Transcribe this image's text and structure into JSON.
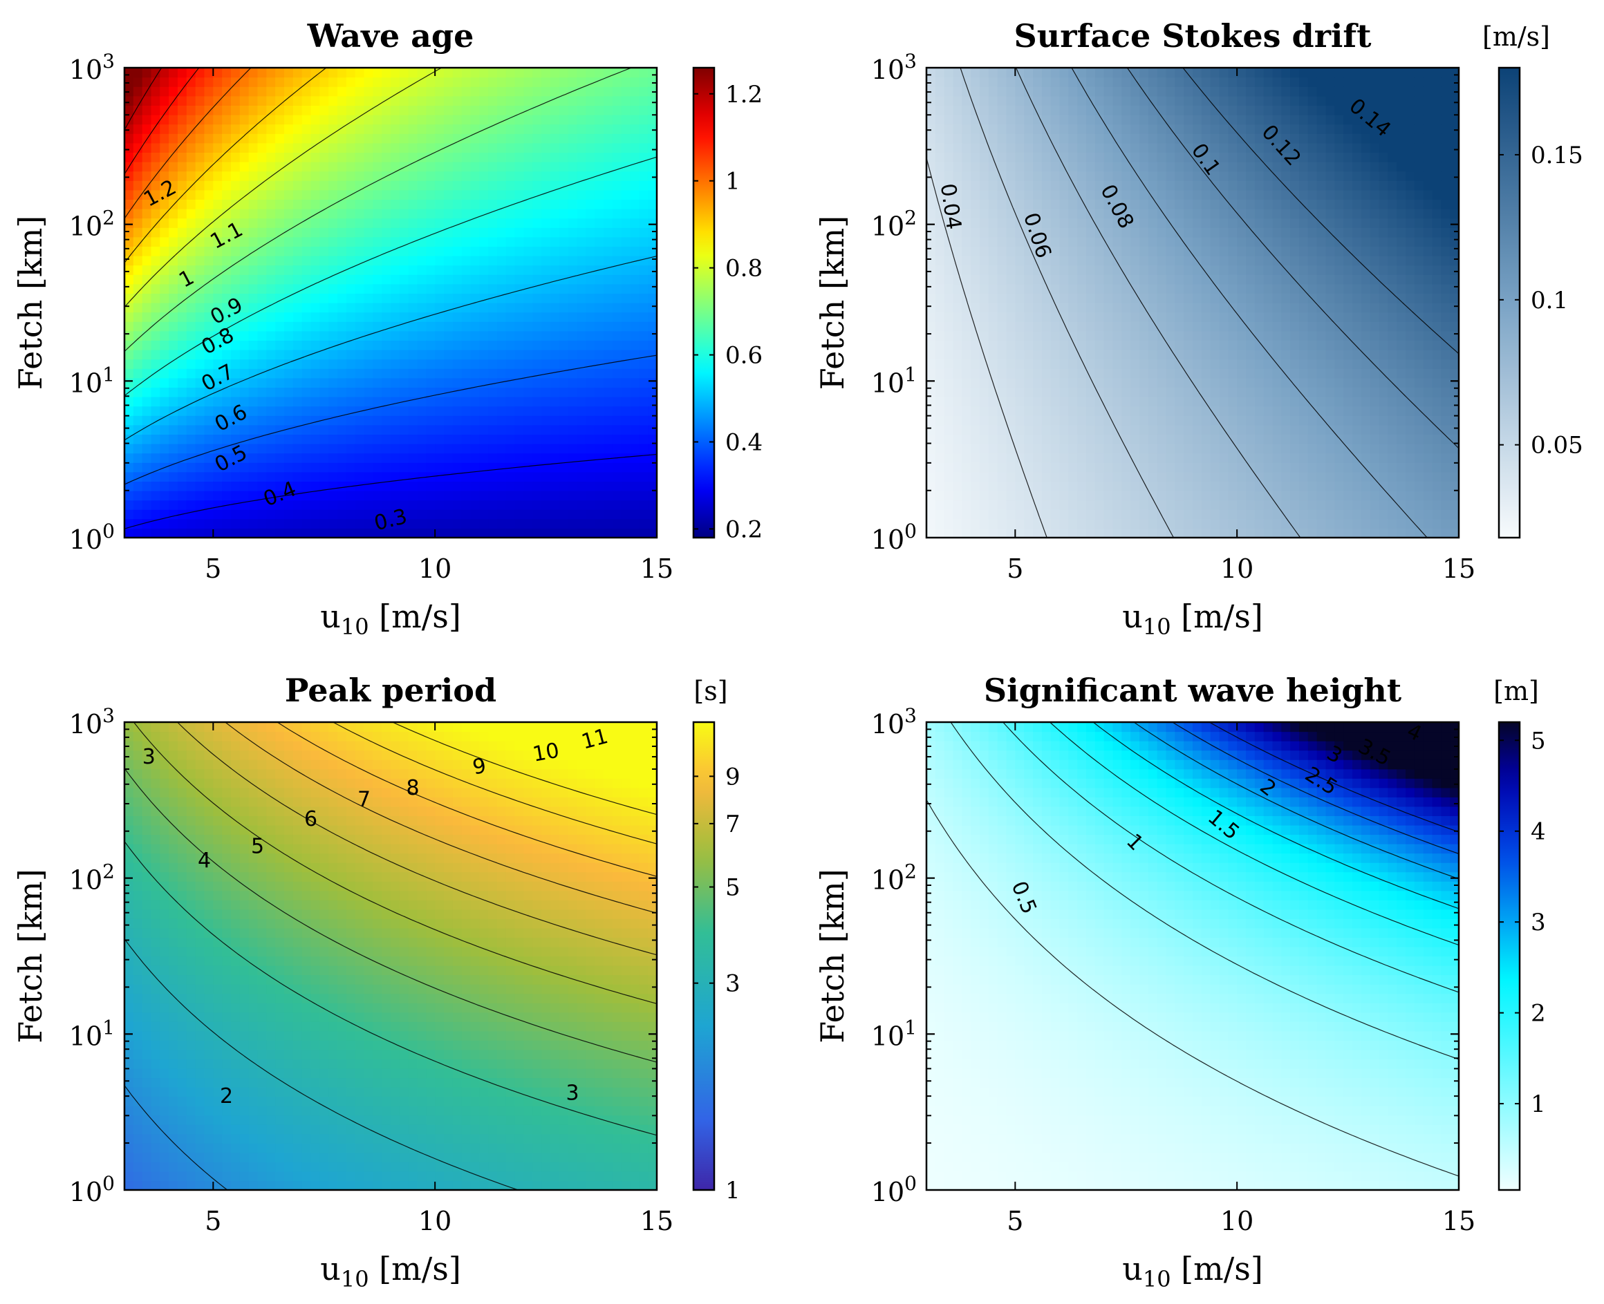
{
  "chart_data": [
    {
      "id": "wave-age",
      "type": "heatmap",
      "title": "Wave age",
      "xlabel": "u10 [m/s]",
      "xlabel_main": "u",
      "xlabel_sub": "10",
      "xlabel_rest": " [m/s]",
      "ylabel": "Fetch [km]",
      "yscale": "log",
      "xlim": [
        3,
        15
      ],
      "ylim": [
        1,
        1000
      ],
      "xticks": [
        5,
        10,
        15
      ],
      "yticks": [
        {
          "base": "10",
          "exp": "0",
          "value": 1
        },
        {
          "base": "10",
          "exp": "1",
          "value": 10
        },
        {
          "base": "10",
          "exp": "2",
          "value": 100
        },
        {
          "base": "10",
          "exp": "3",
          "value": 1000
        }
      ],
      "colorbar": {
        "unit": "",
        "colormap": "jet",
        "log": false,
        "min": 0.18,
        "max": 1.26,
        "ticks": [
          0.2,
          0.4,
          0.6,
          0.8,
          1,
          1.2
        ],
        "tick_labels": [
          "0.2",
          "0.4",
          "0.6",
          "0.8",
          "1",
          "1.2"
        ]
      },
      "field": {
        "formula": "wave_age",
        "a": 1.2,
        "p": 0.2,
        "q": 0.33
      },
      "contour_levels": [
        0.3,
        0.4,
        0.5,
        0.6,
        0.7,
        0.8,
        0.9,
        1.0,
        1.1,
        1.2
      ],
      "contour_labels": [
        {
          "text": "1.2",
          "u": 3.8,
          "fetch": 158,
          "angle": -28
        },
        {
          "text": "1.1",
          "u": 5.3,
          "fetch": 85,
          "angle": -28
        },
        {
          "text": "1",
          "u": 4.4,
          "fetch": 45,
          "angle": -28
        },
        {
          "text": "0.9",
          "u": 5.3,
          "fetch": 28,
          "angle": -28
        },
        {
          "text": "0.8",
          "u": 5.1,
          "fetch": 18,
          "angle": -28
        },
        {
          "text": "0.7",
          "u": 5.1,
          "fetch": 10.5,
          "angle": -28
        },
        {
          "text": "0.6",
          "u": 5.4,
          "fetch": 5.8,
          "angle": -28
        },
        {
          "text": "0.5",
          "u": 5.4,
          "fetch": 3.2,
          "angle": -28
        },
        {
          "text": "0.4",
          "u": 6.5,
          "fetch": 1.9,
          "angle": -22
        },
        {
          "text": "0.3",
          "u": 9.0,
          "fetch": 1.3,
          "angle": -14
        }
      ]
    },
    {
      "id": "stokes-drift",
      "type": "heatmap",
      "title": "Surface Stokes drift",
      "xlabel": "u10 [m/s]",
      "xlabel_main": "u",
      "xlabel_sub": "10",
      "xlabel_rest": " [m/s]",
      "ylabel": "Fetch [km]",
      "yscale": "log",
      "xlim": [
        3,
        15
      ],
      "ylim": [
        1,
        1000
      ],
      "xticks": [
        5,
        10,
        15
      ],
      "yticks": [
        {
          "base": "10",
          "exp": "0",
          "value": 1
        },
        {
          "base": "10",
          "exp": "1",
          "value": 10
        },
        {
          "base": "10",
          "exp": "2",
          "value": 100
        },
        {
          "base": "10",
          "exp": "3",
          "value": 1000
        }
      ],
      "colorbar": {
        "unit": "[m/s]",
        "colormap": "blues",
        "log": false,
        "min": 0.018,
        "max": 0.18,
        "ticks": [
          0.05,
          0.1,
          0.15
        ],
        "tick_labels": [
          "0.05",
          "0.1",
          "0.15"
        ]
      },
      "field": {
        "formula": "stokes",
        "a": 0.0081,
        "p": 1.06,
        "q": 0.12
      },
      "contour_levels": [
        0.02,
        0.04,
        0.06,
        0.08,
        0.1,
        0.12,
        0.14
      ],
      "contour_labels": [
        {
          "text": "0.04",
          "u": 3.55,
          "fetch": 130,
          "angle": 82
        },
        {
          "text": "0.06",
          "u": 5.5,
          "fetch": 85,
          "angle": 72
        },
        {
          "text": "0.08",
          "u": 7.3,
          "fetch": 130,
          "angle": 62
        },
        {
          "text": "0.1",
          "u": 9.3,
          "fetch": 260,
          "angle": 55
        },
        {
          "text": "0.12",
          "u": 11.0,
          "fetch": 320,
          "angle": 48
        },
        {
          "text": "0.14",
          "u": 13.0,
          "fetch": 480,
          "angle": 40
        }
      ]
    },
    {
      "id": "peak-period",
      "type": "heatmap",
      "title": "Peak period",
      "xlabel": "u10 [m/s]",
      "xlabel_main": "u",
      "xlabel_sub": "10",
      "xlabel_rest": " [m/s]",
      "ylabel": "Fetch [km]",
      "yscale": "log",
      "xlim": [
        3,
        15
      ],
      "ylim": [
        1,
        1000
      ],
      "xticks": [
        5,
        10,
        15
      ],
      "yticks": [
        {
          "base": "10",
          "exp": "0",
          "value": 1
        },
        {
          "base": "10",
          "exp": "1",
          "value": 10
        },
        {
          "base": "10",
          "exp": "2",
          "value": 100
        },
        {
          "base": "10",
          "exp": "3",
          "value": 1000
        }
      ],
      "colorbar": {
        "unit": "[s]",
        "colormap": "parula",
        "log": true,
        "min": 1,
        "max": 12,
        "ticks": [
          1,
          3,
          5,
          7,
          9
        ],
        "tick_labels": [
          "1",
          "3",
          "5",
          "7",
          "9"
        ]
      },
      "field": {
        "formula": "period",
        "a": 0.74,
        "p": 0.67,
        "q": 0.33
      },
      "contour_levels": [
        2,
        3,
        4,
        5,
        6,
        7,
        8,
        9,
        10,
        11
      ],
      "contour_labels": [
        {
          "text": "3",
          "u": 3.55,
          "fetch": 600,
          "angle": 0
        },
        {
          "text": "4",
          "u": 4.8,
          "fetch": 130,
          "angle": 0
        },
        {
          "text": "5",
          "u": 6.0,
          "fetch": 160,
          "angle": 0
        },
        {
          "text": "6",
          "u": 7.2,
          "fetch": 240,
          "angle": 0
        },
        {
          "text": "7",
          "u": 8.4,
          "fetch": 320,
          "angle": 0
        },
        {
          "text": "8",
          "u": 9.5,
          "fetch": 380,
          "angle": 0
        },
        {
          "text": "9",
          "u": 11.0,
          "fetch": 520,
          "angle": -10
        },
        {
          "text": "10",
          "u": 12.5,
          "fetch": 640,
          "angle": -10
        },
        {
          "text": "11",
          "u": 13.6,
          "fetch": 780,
          "angle": -15
        },
        {
          "text": "2",
          "u": 5.3,
          "fetch": 4.0,
          "angle": 0
        },
        {
          "text": "3",
          "u": 13.1,
          "fetch": 4.2,
          "angle": 0
        }
      ]
    },
    {
      "id": "wave-height",
      "type": "heatmap",
      "title": "Significant wave height",
      "xlabel": "u10 [m/s]",
      "xlabel_main": "u",
      "xlabel_sub": "10",
      "xlabel_rest": " [m/s]",
      "ylabel": "Fetch [km]",
      "yscale": "log",
      "xlim": [
        3,
        15
      ],
      "ylim": [
        1,
        1000
      ],
      "xticks": [
        5,
        10,
        15
      ],
      "yticks": [
        {
          "base": "10",
          "exp": "0",
          "value": 1
        },
        {
          "base": "10",
          "exp": "1",
          "value": 10
        },
        {
          "base": "10",
          "exp": "2",
          "value": 100
        },
        {
          "base": "10",
          "exp": "3",
          "value": 1000
        }
      ],
      "colorbar": {
        "unit": "[m]",
        "colormap": "cyanblack",
        "log": false,
        "min": 0.05,
        "max": 5.2,
        "ticks": [
          1,
          2,
          3,
          4,
          5
        ],
        "tick_labels": [
          "1",
          "2",
          "3",
          "4",
          "5"
        ]
      },
      "field": {
        "formula": "height",
        "a": 0.0062,
        "p": 1.56,
        "q": 0.5
      },
      "contour_levels": [
        0.5,
        1,
        1.5,
        2,
        2.5,
        3,
        3.5,
        4
      ],
      "contour_labels": [
        {
          "text": "0.5",
          "u": 5.2,
          "fetch": 75,
          "angle": 68
        },
        {
          "text": "1",
          "u": 7.7,
          "fetch": 170,
          "angle": 45
        },
        {
          "text": "1.5",
          "u": 9.7,
          "fetch": 220,
          "angle": 40
        },
        {
          "text": "2",
          "u": 10.7,
          "fetch": 380,
          "angle": 38
        },
        {
          "text": "2.5",
          "u": 11.9,
          "fetch": 420,
          "angle": 32
        },
        {
          "text": "3",
          "u": 12.2,
          "fetch": 620,
          "angle": 30
        },
        {
          "text": "3.5",
          "u": 13.1,
          "fetch": 640,
          "angle": 28
        },
        {
          "text": "4",
          "u": 14.0,
          "fetch": 860,
          "angle": 25
        }
      ]
    }
  ]
}
